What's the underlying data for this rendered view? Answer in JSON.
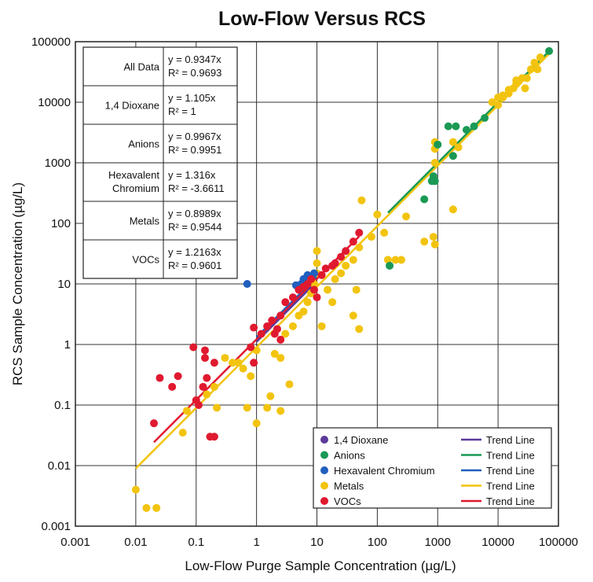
{
  "chart_data": {
    "type": "scatter",
    "title": "Low-Flow Versus RCS",
    "xlabel": "Low-Flow Purge Sample Concentration (µg/L)",
    "ylabel": "RCS Sample Concentration (µg/L)",
    "xscale": "log",
    "yscale": "log",
    "xlim": [
      0.001,
      100000
    ],
    "ylim": [
      0.001,
      100000
    ],
    "grid": true,
    "legend_position": "bottom-right",
    "x_tick_labels": [
      "0.001",
      "0.01",
      "0.1",
      "1",
      "10",
      "100",
      "1000",
      "10000",
      "100000"
    ],
    "y_tick_labels": [
      "0.001",
      "0.01",
      "0.1",
      "1",
      "10",
      "100",
      "1000",
      "10000",
      "100000"
    ],
    "regression_table": [
      {
        "group": "All Data",
        "equation": "y = 0.9347x",
        "r2": "R² = 0.9693"
      },
      {
        "group": "1,4 Dioxane",
        "equation": "y = 1.105x",
        "r2": "R² = 1"
      },
      {
        "group": "Anions",
        "equation": "y = 0.9967x",
        "r2": "R² = 0.9951"
      },
      {
        "group": "Hexavalent Chromium",
        "group_lines": [
          "Hexavalent",
          "Chromium"
        ],
        "equation": "y = 1.316x",
        "r2": "R² = -3.6611"
      },
      {
        "group": "Metals",
        "equation": "y = 0.8989x",
        "r2": "R² = 0.9544"
      },
      {
        "group": "VOCs",
        "equation": "y = 1.2163x",
        "r2": "R² = 0.9601"
      }
    ],
    "series": [
      {
        "name": "1,4 Dioxane",
        "color": "#5b3a9a",
        "trend_label": "Trend Line",
        "trend_slope": 1.105,
        "trend_range": [
          1,
          10
        ],
        "points": []
      },
      {
        "name": "Anions",
        "color": "#1a9955",
        "trend_label": "Trend Line",
        "trend_slope": 0.9967,
        "trend_range": [
          150,
          70000
        ],
        "points": [
          [
            70000,
            70000
          ],
          [
            1500,
            4000
          ],
          [
            2000,
            4000
          ],
          [
            1000,
            2000
          ],
          [
            3000,
            3500
          ],
          [
            4000,
            4000
          ],
          [
            6000,
            5500
          ],
          [
            1800,
            1300
          ],
          [
            850,
            600
          ],
          [
            900,
            500
          ],
          [
            800,
            500
          ],
          [
            600,
            250
          ],
          [
            160,
            20
          ]
        ]
      },
      {
        "name": "Hexavalent Chromium",
        "color": "#1f5fbf",
        "trend_label": "Trend Line",
        "trend_slope": 1.316,
        "trend_range": [
          1,
          10
        ],
        "points": [
          [
            0.7,
            10
          ],
          [
            4.5,
            9.5
          ],
          [
            6,
            12
          ],
          [
            7,
            14
          ],
          [
            8,
            13
          ],
          [
            5.5,
            10
          ],
          [
            9,
            15
          ]
        ]
      },
      {
        "name": "Metals",
        "color": "#f2c40f",
        "trend_label": "Trend Line",
        "trend_slope": 0.8989,
        "trend_range": [
          0.01,
          80000
        ],
        "points": [
          [
            0.01,
            0.004
          ],
          [
            0.015,
            0.002
          ],
          [
            0.022,
            0.002
          ],
          [
            0.06,
            0.035
          ],
          [
            0.07,
            0.08
          ],
          [
            0.15,
            0.15
          ],
          [
            0.2,
            0.2
          ],
          [
            0.22,
            0.09
          ],
          [
            0.3,
            0.6
          ],
          [
            0.4,
            0.5
          ],
          [
            0.5,
            0.5
          ],
          [
            0.6,
            0.4
          ],
          [
            0.8,
            0.3
          ],
          [
            0.7,
            0.09
          ],
          [
            1,
            0.05
          ],
          [
            1,
            0.8
          ],
          [
            1.5,
            0.09
          ],
          [
            1.7,
            0.14
          ],
          [
            2,
            0.7
          ],
          [
            2.5,
            0.6
          ],
          [
            2.5,
            0.08
          ],
          [
            3,
            1.5
          ],
          [
            3.5,
            0.22
          ],
          [
            4,
            2
          ],
          [
            5,
            3
          ],
          [
            6,
            3.5
          ],
          [
            7,
            5
          ],
          [
            8,
            7
          ],
          [
            9,
            10
          ],
          [
            10,
            15
          ],
          [
            10,
            22
          ],
          [
            10,
            35
          ],
          [
            12,
            2
          ],
          [
            15,
            8
          ],
          [
            18,
            5
          ],
          [
            20,
            12
          ],
          [
            25,
            15
          ],
          [
            30,
            20
          ],
          [
            40,
            25
          ],
          [
            40,
            3
          ],
          [
            45,
            8
          ],
          [
            50,
            40
          ],
          [
            50,
            1.8
          ],
          [
            55,
            240
          ],
          [
            80,
            60
          ],
          [
            100,
            140
          ],
          [
            130,
            70
          ],
          [
            150,
            25
          ],
          [
            200,
            25
          ],
          [
            250,
            25
          ],
          [
            300,
            130
          ],
          [
            600,
            50
          ],
          [
            850,
            60
          ],
          [
            900,
            45
          ],
          [
            900,
            1000
          ],
          [
            900,
            1700
          ],
          [
            900,
            2200
          ],
          [
            1800,
            170
          ],
          [
            1800,
            2200
          ],
          [
            2200,
            1800
          ],
          [
            8000,
            10000
          ],
          [
            10000,
            12000
          ],
          [
            12000,
            13000
          ],
          [
            15000,
            14000
          ],
          [
            18000,
            17000
          ],
          [
            20000,
            20000
          ],
          [
            22000,
            22000
          ],
          [
            25000,
            25000
          ],
          [
            30000,
            25000
          ],
          [
            35000,
            35000
          ],
          [
            40000,
            45000
          ],
          [
            45000,
            35000
          ],
          [
            50000,
            55000
          ],
          [
            10000,
            9000
          ],
          [
            12000,
            12000
          ],
          [
            15000,
            16000
          ],
          [
            20000,
            23000
          ],
          [
            28000,
            17000
          ]
        ]
      },
      {
        "name": "VOCs",
        "color": "#e0192f",
        "trend_label": "Trend Line",
        "trend_slope": 1.2163,
        "trend_range": [
          0.02,
          50
        ],
        "points": [
          [
            0.02,
            0.05
          ],
          [
            0.025,
            0.28
          ],
          [
            0.04,
            0.2
          ],
          [
            0.05,
            0.3
          ],
          [
            0.09,
            0.9
          ],
          [
            0.1,
            0.12
          ],
          [
            0.11,
            0.1
          ],
          [
            0.13,
            0.2
          ],
          [
            0.14,
            0.8
          ],
          [
            0.14,
            0.6
          ],
          [
            0.15,
            0.28
          ],
          [
            0.17,
            0.03
          ],
          [
            0.2,
            0.03
          ],
          [
            0.2,
            0.5
          ],
          [
            0.8,
            0.9
          ],
          [
            0.9,
            1.9
          ],
          [
            0.9,
            0.5
          ],
          [
            1.2,
            1.5
          ],
          [
            1.5,
            2
          ],
          [
            1.8,
            2.5
          ],
          [
            2,
            1.5
          ],
          [
            2.2,
            1.8
          ],
          [
            2.5,
            3
          ],
          [
            2.5,
            1.2
          ],
          [
            3,
            5
          ],
          [
            4,
            6
          ],
          [
            5,
            8
          ],
          [
            6,
            9
          ],
          [
            7,
            10
          ],
          [
            8,
            12
          ],
          [
            9,
            8
          ],
          [
            10,
            6
          ],
          [
            12,
            14
          ],
          [
            14,
            18
          ],
          [
            18,
            20
          ],
          [
            20,
            22
          ],
          [
            25,
            28
          ],
          [
            30,
            35
          ],
          [
            40,
            50
          ],
          [
            50,
            70
          ]
        ]
      }
    ]
  }
}
